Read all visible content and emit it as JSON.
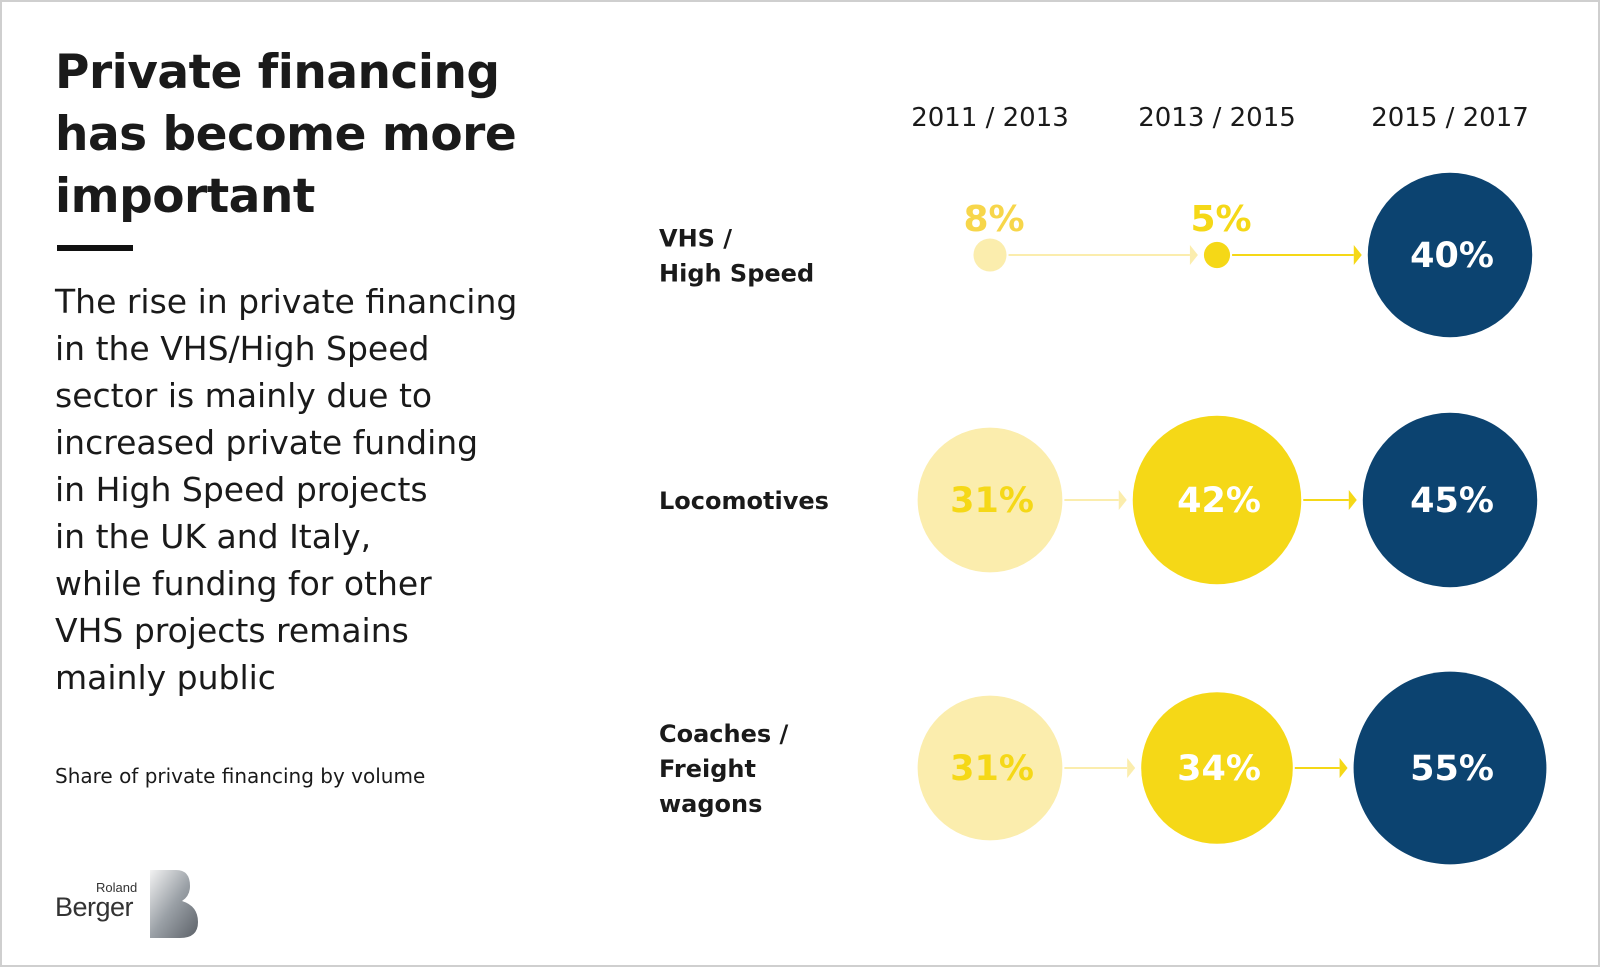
{
  "title": "Private financing\nhas become more\nimportant",
  "description": "The rise in private financing\nin the VHS/High Speed\nsector is mainly due to\nincreased private funding\nin High Speed projects\nin the UK and Italy,\nwhile funding for other\nVHS projects remains\nmainly public",
  "footnote": "Share of private financing by volume",
  "logo": {
    "line1": "Roland",
    "line2": "Berger"
  },
  "colors": {
    "light_yellow": "#fbedad",
    "yellow": "#f5d817",
    "dark_blue": "#0c4370",
    "text_dark": "#1a1a1a"
  },
  "chart_data": {
    "type": "bubble",
    "categories": [
      "2011 / 2013",
      "2013 / 2015",
      "2015 / 2017"
    ],
    "series": [
      {
        "name": "VHS /\nHigh Speed",
        "values": [
          8,
          5,
          40
        ],
        "labels": [
          "8%",
          "5%",
          "40%"
        ]
      },
      {
        "name": "Locomotives",
        "values": [
          31,
          42,
          45
        ],
        "labels": [
          "31%",
          "42%",
          "45%"
        ]
      },
      {
        "name": "Coaches /\nFreight\nwagons",
        "values": [
          31,
          34,
          55
        ],
        "labels": [
          "31%",
          "34%",
          "55%"
        ]
      }
    ],
    "unit": "%"
  }
}
